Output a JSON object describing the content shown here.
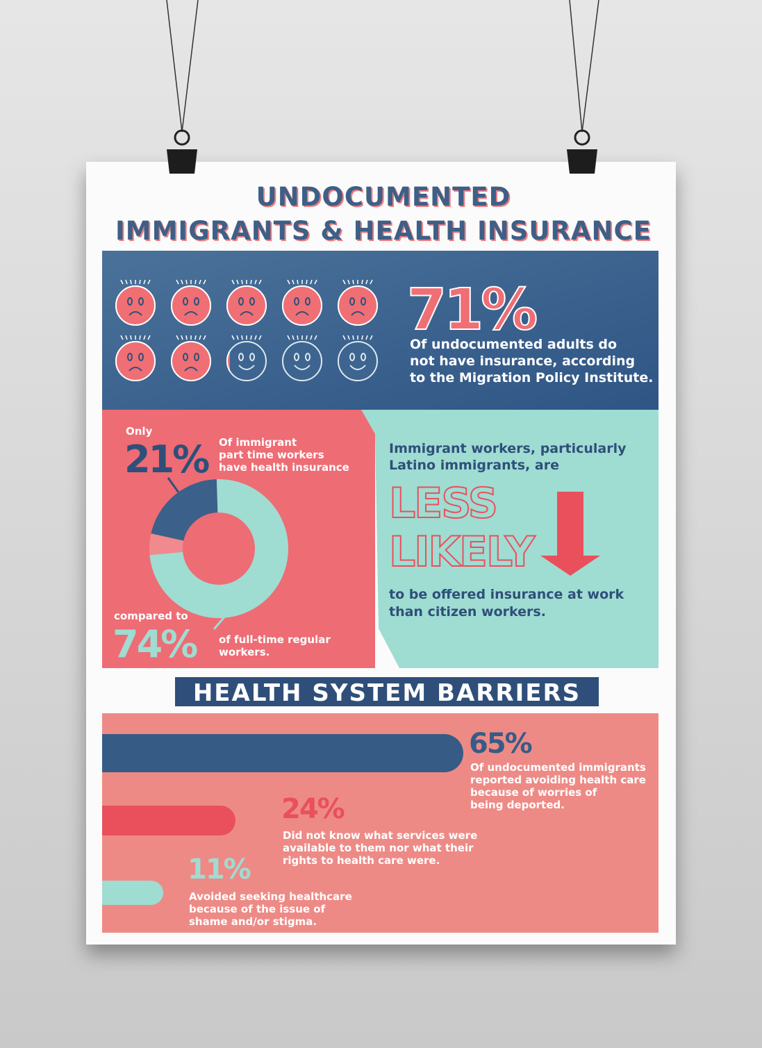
{
  "header": {
    "title_lines": [
      "UNDOCUMENTED",
      "IMMIGRANTS & HEALTH INSURANCE"
    ]
  },
  "uninsured": {
    "value": 71,
    "label": "71%",
    "description": [
      "Of undocumented adults do",
      "not have insurance, according",
      "to the Migration Policy Institute."
    ]
  },
  "donut": {
    "part_time": {
      "intro": "Only",
      "value": 21,
      "label": "21%",
      "text": [
        "Of immigrant",
        "part time workers",
        "have health insurance"
      ]
    },
    "full_time": {
      "intro": "compared to",
      "value": 74,
      "label": "74%",
      "text": [
        "of full-time regular",
        "workers."
      ]
    }
  },
  "less_likely": {
    "intro": [
      "Immigrant workers, particularly",
      "Latino immigrants, are"
    ],
    "emphasis": [
      "LESS",
      "LIKELY"
    ],
    "outro": [
      "to be offered insurance at work",
      "than citizen workers."
    ]
  },
  "barriers": {
    "heading": "HEALTH SYSTEM BARRIERS",
    "items": [
      {
        "value": 65,
        "label": "65%",
        "color": "#365c86",
        "text": [
          "Of undocumented immigrants",
          "reported avoiding health care",
          "because of worries of",
          "being deported."
        ]
      },
      {
        "value": 24,
        "label": "24%",
        "color": "#e9505c",
        "text": [
          "Did not know what services were",
          "available to them nor what their",
          "rights to health care were."
        ]
      },
      {
        "value": 11,
        "label": "11%",
        "color": "#9fdcd2",
        "text": [
          "Avoided seeking healthcare",
          "because of the issue of",
          "shame and/or stigma."
        ]
      }
    ]
  }
}
